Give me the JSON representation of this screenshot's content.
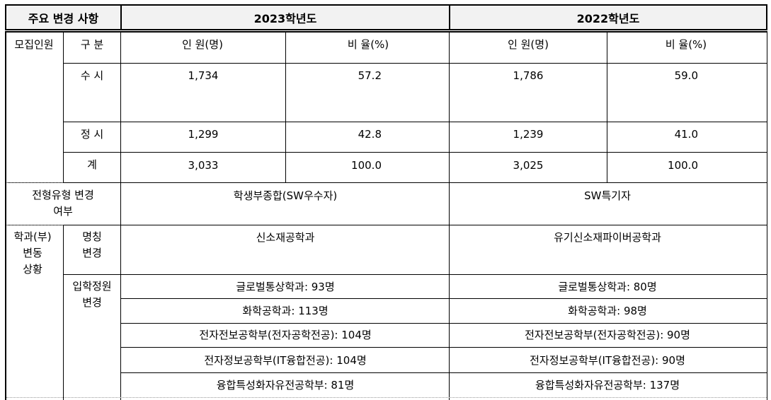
{
  "header": {
    "title": "주요 변경 사항",
    "year_2023": "2023학년도",
    "year_2022": "2022학년도"
  },
  "recruit": {
    "label": "모집인원",
    "col_category": "구 분",
    "col_count": "인 원(명)",
    "col_ratio": "비 율(%)",
    "rows": [
      {
        "name": "수 시",
        "count_2023": "1,734",
        "ratio_2023": "57.2",
        "count_2022": "1,786",
        "ratio_2022": "59.0"
      },
      {
        "name": "정 시",
        "count_2023": "1,299",
        "ratio_2023": "42.8",
        "count_2022": "1,239",
        "ratio_2022": "41.0"
      },
      {
        "name": "계",
        "count_2023": "3,033",
        "ratio_2023": "100.0",
        "count_2022": "3,025",
        "ratio_2022": "100.0"
      }
    ]
  },
  "admission_type": {
    "label_line1": "전형유형 변경",
    "label_line2": "여부",
    "value_2023": "학생부종합(SW우수자)",
    "value_2022": "SW특기자"
  },
  "dept": {
    "label_line1": "학과(부)",
    "label_line2": "변동",
    "label_line3": "상황",
    "rename": {
      "label_line1": "명칭",
      "label_line2": "변경",
      "value_2023": "신소재공학과",
      "value_2022": "유기신소재파이버공학과"
    },
    "quota": {
      "label_line1": "입학정원",
      "label_line2": "변경",
      "rows": [
        {
          "v2023": "글로벌통상학과: 93명",
          "v2022": "글로벌통상학과: 80명"
        },
        {
          "v2023": "화학공학과: 113명",
          "v2022": "화학공학과: 98명"
        },
        {
          "v2023": "전자전보공학부(전자공학전공): 104명",
          "v2022": "전자전보공학부(전자공학전공): 90명"
        },
        {
          "v2023": "전자정보공학부(IT융합전공): 104명",
          "v2022": "전자정보공학부(IT융합전공): 90명"
        },
        {
          "v2023": "융합특성화자유전공학부: 81명",
          "v2022": "융합특성화자유전공학부: 137명"
        }
      ]
    }
  }
}
